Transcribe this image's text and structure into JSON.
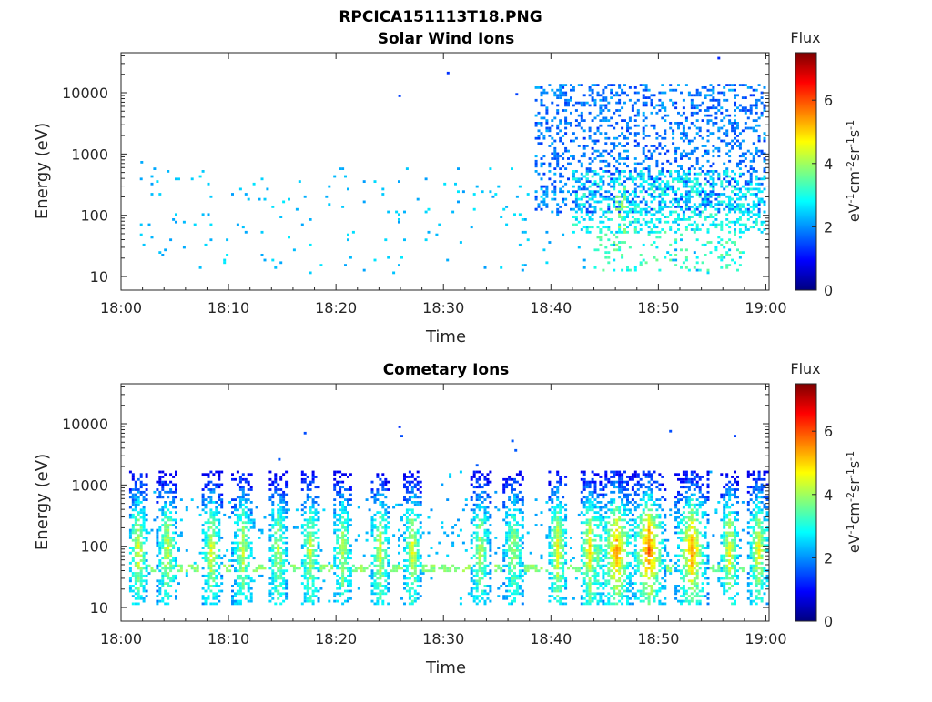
{
  "figure": {
    "title": "RPCICA151113T18.PNG"
  },
  "colormap": {
    "name": "jet",
    "stops": [
      "#00007f",
      "#0000ff",
      "#007fff",
      "#00ffff",
      "#7fff7f",
      "#ffff00",
      "#ff7f00",
      "#ff0000",
      "#7f0000"
    ]
  },
  "chart_data": [
    {
      "type": "heatmap",
      "title": "Solar Wind Ions",
      "xlabel": "Time",
      "ylabel": "Energy (eV)",
      "x_range": [
        "18:00",
        "19:00"
      ],
      "xticks": [
        "18:00",
        "18:10",
        "18:20",
        "18:30",
        "18:40",
        "18:50",
        "19:00"
      ],
      "yscale": "log",
      "ylim": [
        6,
        45000
      ],
      "yticks": [
        10,
        100,
        1000,
        10000
      ],
      "ytick_labels": [
        "10",
        "100",
        "1000",
        "10000"
      ],
      "colorbar": {
        "title": "Flux",
        "label": "eV⁻¹cm⁻²sr⁻¹s⁻¹",
        "range": [
          0,
          7.5
        ],
        "ticks": [
          "0",
          "2",
          "4",
          "6"
        ]
      },
      "activity": {
        "description_values": "approximate log10 flux per time/energy bin",
        "sparse_background": {
          "t_range": [
            1.5,
            60
          ],
          "e_range": [
            10,
            600
          ],
          "level": 2.4,
          "density": 0.05
        },
        "isolated_points": [
          {
            "t": 30.3,
            "e": 20000,
            "v": 1.3
          },
          {
            "t": 25.8,
            "e": 8500,
            "v": 1.4
          },
          {
            "t": 55.5,
            "e": 35000,
            "v": 1.2
          },
          {
            "t": 1.8,
            "e": 700,
            "v": 2.2
          },
          {
            "t": 36.7,
            "e": 9000,
            "v": 1.4
          }
        ],
        "clusters": [
          {
            "t0": 38.5,
            "t1": 60,
            "e0": 100,
            "e1": 13000,
            "level": 1.6,
            "density": 0.5
          },
          {
            "t0": 42,
            "t1": 60,
            "e0": 50,
            "e1": 500,
            "level": 2.6,
            "density": 0.5
          },
          {
            "t0": 44,
            "t1": 58,
            "e0": 12,
            "e1": 60,
            "level": 3.0,
            "density": 0.25
          },
          {
            "t0": 46,
            "t1": 47,
            "e0": 30,
            "e1": 300,
            "level": 3.4,
            "density": 0.6
          }
        ]
      }
    },
    {
      "type": "heatmap",
      "title": "Cometary Ions",
      "xlabel": "Time",
      "ylabel": "Energy (eV)",
      "x_range": [
        "18:00",
        "19:00"
      ],
      "xticks": [
        "18:00",
        "18:10",
        "18:20",
        "18:30",
        "18:40",
        "18:50",
        "19:00"
      ],
      "yscale": "log",
      "ylim": [
        6,
        45000
      ],
      "yticks": [
        10,
        100,
        1000,
        10000
      ],
      "ytick_labels": [
        "10",
        "100",
        "1000",
        "10000"
      ],
      "colorbar": {
        "title": "Flux",
        "label": "eV⁻¹cm⁻²sr⁻¹s⁻¹",
        "range": [
          0,
          7.5
        ],
        "ticks": [
          "0",
          "2",
          "4",
          "6"
        ]
      },
      "activity": {
        "description_values": "approximate log10 flux per time/energy bin",
        "band": {
          "e0": 35,
          "e1": 48,
          "level": 4.2
        },
        "bursts_minutes": [
          1.5,
          4.2,
          8.3,
          11.2,
          14.5,
          17.5,
          20.5,
          24.0,
          27.0,
          33.3,
          36.4,
          40.5,
          43.5,
          46.0,
          49.0,
          53.0,
          56.5,
          59.2
        ],
        "burst_peak_levels": [
          4.6,
          4.5,
          4.6,
          4.4,
          4.3,
          4.4,
          4.2,
          4.5,
          4.6,
          4.3,
          4.2,
          4.8,
          5.0,
          5.6,
          6.0,
          5.5,
          4.8,
          4.8
        ],
        "isolated_points": [
          {
            "t": 17.0,
            "e": 6700,
            "v": 1.5
          },
          {
            "t": 25.8,
            "e": 8500,
            "v": 1.3
          },
          {
            "t": 26.0,
            "e": 6000,
            "v": 1.5
          },
          {
            "t": 36.3,
            "e": 5000,
            "v": 1.6
          },
          {
            "t": 36.6,
            "e": 3500,
            "v": 1.6
          },
          {
            "t": 51.0,
            "e": 7200,
            "v": 1.5
          },
          {
            "t": 57.0,
            "e": 6000,
            "v": 1.4
          },
          {
            "t": 14.6,
            "e": 2500,
            "v": 1.6
          },
          {
            "t": 33.0,
            "e": 2000,
            "v": 1.6
          }
        ]
      }
    }
  ]
}
